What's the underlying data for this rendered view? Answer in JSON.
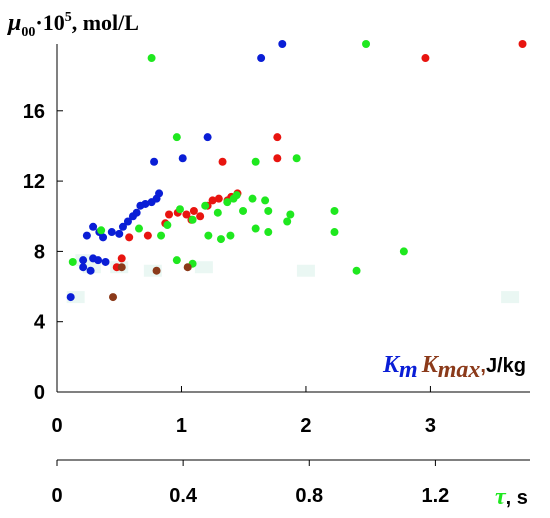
{
  "chart_data": {
    "type": "scatter",
    "y_axis": {
      "label_mu": "μ",
      "label_sub": "00",
      "label_mid": "·10",
      "label_sup": "5",
      "label_unit": ", mol/L",
      "range": [
        0,
        19.8
      ],
      "ticks": [
        "0",
        "4",
        "8",
        "12",
        "16"
      ]
    },
    "x_axis_top": {
      "range": [
        0,
        3.8
      ],
      "ticks": [
        "0",
        "1",
        "2",
        "3"
      ],
      "label_k_n": "K",
      "label_k_n_sub": "m",
      "label_k_max": "K",
      "label_k_max_sub": "max",
      "label_comma": ",",
      "label_unit": "J/kg"
    },
    "x_axis_bottom": {
      "range": [
        0,
        1.5
      ],
      "ticks": [
        "0",
        "0.4",
        "0.8",
        "1.2"
      ],
      "label_tau": "τ",
      "label_unit": ", s"
    },
    "colors": {
      "k_n": "#0a1ed6",
      "k_max": "#e8140f",
      "tau": "#1fe81f",
      "label_brown": "#8b3a1a"
    },
    "series": [
      {
        "key": "k_n",
        "axis": "top",
        "points": [
          [
            0.11,
            5.4
          ],
          [
            0.21,
            7.1
          ],
          [
            0.27,
            6.9
          ],
          [
            0.29,
            7.6
          ],
          [
            0.33,
            7.5
          ],
          [
            0.21,
            7.5
          ],
          [
            0.24,
            8.9
          ],
          [
            0.37,
            8.8
          ],
          [
            0.39,
            7.4
          ],
          [
            0.44,
            9.1
          ],
          [
            0.5,
            9.0
          ],
          [
            0.53,
            9.4
          ],
          [
            0.57,
            9.7
          ],
          [
            0.61,
            10.0
          ],
          [
            0.64,
            10.2
          ],
          [
            0.67,
            10.6
          ],
          [
            0.71,
            10.7
          ],
          [
            0.76,
            10.8
          ],
          [
            0.8,
            11.0
          ],
          [
            0.82,
            11.3
          ],
          [
            0.29,
            9.4
          ],
          [
            0.34,
            9.1
          ],
          [
            0.78,
            13.1
          ],
          [
            1.01,
            13.3
          ],
          [
            1.21,
            14.5
          ],
          [
            1.64,
            19.0
          ],
          [
            1.81,
            19.8
          ]
        ]
      },
      {
        "key": "k_max",
        "axis": "top",
        "points": [
          [
            0.48,
            7.1
          ],
          [
            0.52,
            7.6
          ],
          [
            0.58,
            8.8
          ],
          [
            0.73,
            8.9
          ],
          [
            0.87,
            9.6
          ],
          [
            0.9,
            10.1
          ],
          [
            0.97,
            10.2
          ],
          [
            1.04,
            10.1
          ],
          [
            1.08,
            9.8
          ],
          [
            1.1,
            10.3
          ],
          [
            1.15,
            10.0
          ],
          [
            1.21,
            10.6
          ],
          [
            1.25,
            10.9
          ],
          [
            1.3,
            11.0
          ],
          [
            1.37,
            10.9
          ],
          [
            1.4,
            11.1
          ],
          [
            1.45,
            11.3
          ],
          [
            1.33,
            13.1
          ],
          [
            1.77,
            13.3
          ],
          [
            1.77,
            14.5
          ],
          [
            2.96,
            19.0
          ],
          [
            3.74,
            19.8
          ]
        ]
      },
      {
        "key": "tau",
        "axis": "bottom",
        "points": [
          [
            0.05,
            7.4
          ],
          [
            0.14,
            9.2
          ],
          [
            0.26,
            9.3
          ],
          [
            0.33,
            8.9
          ],
          [
            0.35,
            9.5
          ],
          [
            0.38,
            7.5
          ],
          [
            0.39,
            10.4
          ],
          [
            0.43,
            9.8
          ],
          [
            0.47,
            10.6
          ],
          [
            0.48,
            8.9
          ],
          [
            0.51,
            10.2
          ],
          [
            0.52,
            8.7
          ],
          [
            0.54,
            10.8
          ],
          [
            0.55,
            8.9
          ],
          [
            0.56,
            11.0
          ],
          [
            0.57,
            11.2
          ],
          [
            0.59,
            10.3
          ],
          [
            0.62,
            11.0
          ],
          [
            0.63,
            9.3
          ],
          [
            0.63,
            13.1
          ],
          [
            0.66,
            10.9
          ],
          [
            0.67,
            10.3
          ],
          [
            0.67,
            9.1
          ],
          [
            0.73,
            9.7
          ],
          [
            0.74,
            10.1
          ],
          [
            0.76,
            13.3
          ],
          [
            0.88,
            10.3
          ],
          [
            0.88,
            9.1
          ],
          [
            0.38,
            14.5
          ],
          [
            0.3,
            19.0
          ],
          [
            0.98,
            19.8
          ],
          [
            0.43,
            7.3
          ],
          [
            0.95,
            6.9
          ],
          [
            1.1,
            8.0
          ]
        ]
      }
    ],
    "highlight_points": [
      [
        0.15,
        5.4
      ],
      [
        0.28,
        7.1
      ],
      [
        0.77,
        6.9
      ],
      [
        1.18,
        7.1
      ],
      [
        2.0,
        6.9
      ],
      [
        3.64,
        5.4
      ],
      [
        0.22,
        7.5
      ],
      [
        0.5,
        7.1
      ]
    ]
  }
}
